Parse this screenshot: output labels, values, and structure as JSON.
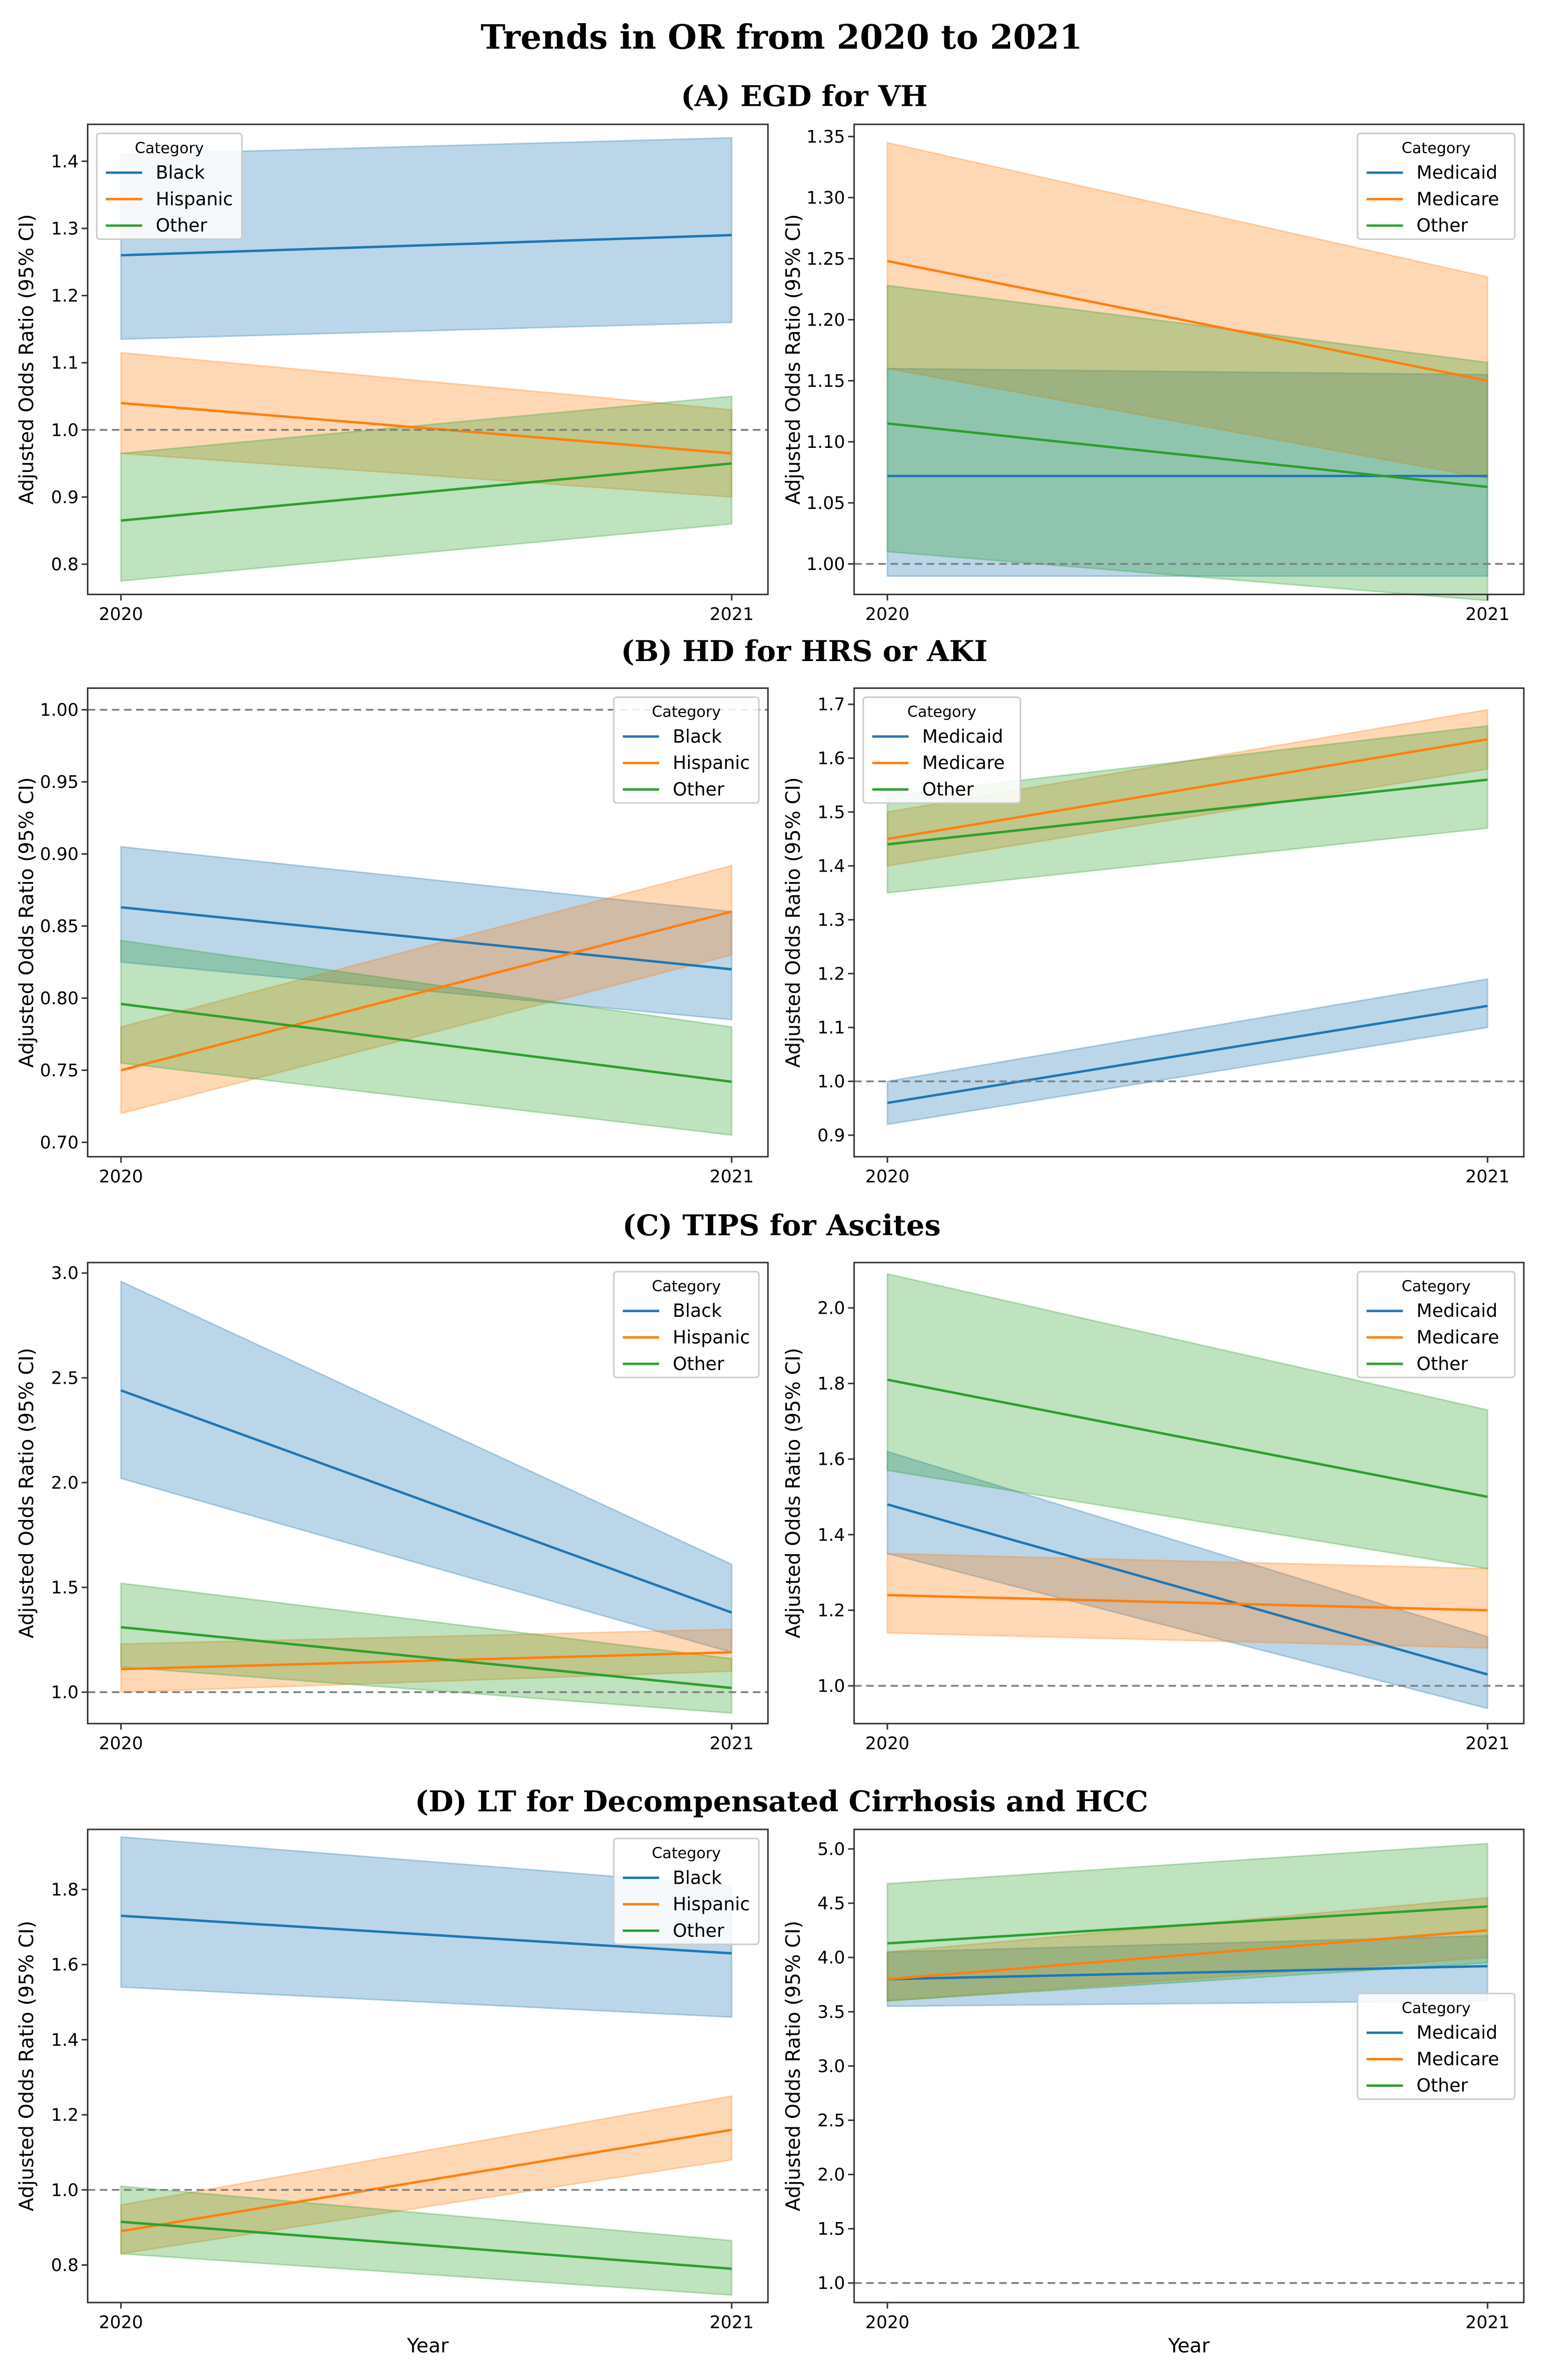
{
  "title": "Trends in OR from 2020 to 2021",
  "colors": {
    "Black": "#1f77b4",
    "Hispanic": "#ff7f0e",
    "Medicaid": "#1f77b4",
    "Medicare": "#ff7f0e",
    "Other": "#2ca02c",
    "reference_line": "#808080"
  },
  "sections": [
    {
      "label": "(A)  EGD for VH"
    },
    {
      "label": "(B)  HD for HRS or AKI"
    },
    {
      "label": "(C) TIPS for Ascites"
    },
    {
      "label": "(D) LT for Decompensated Cirrhosis and HCC"
    }
  ],
  "chart_data": [
    {
      "type": "line",
      "section": 0,
      "side": "left",
      "ylabel": "Adjusted Odds Ratio (95% CI)",
      "xlabel": "",
      "x": [
        "2020",
        "2021"
      ],
      "ylim": [
        0.755,
        1.455
      ],
      "yticks": [
        "0.8",
        "0.9",
        "1.0",
        "1.1",
        "1.2",
        "1.3",
        "1.4"
      ],
      "reference_line": 1.0,
      "legend_title": "Category",
      "legend_loc": "upper-left",
      "series": [
        {
          "name": "Black",
          "values": [
            1.26,
            1.29
          ],
          "ci_low": [
            1.135,
            1.16
          ],
          "ci_high": [
            1.41,
            1.435
          ]
        },
        {
          "name": "Hispanic",
          "values": [
            1.04,
            0.965
          ],
          "ci_low": [
            0.965,
            0.9
          ],
          "ci_high": [
            1.115,
            1.03
          ]
        },
        {
          "name": "Other",
          "values": [
            0.865,
            0.95
          ],
          "ci_low": [
            0.775,
            0.86
          ],
          "ci_high": [
            0.965,
            1.05
          ]
        }
      ]
    },
    {
      "type": "line",
      "section": 0,
      "side": "right",
      "ylabel": "Adjusted Odds Ratio (95% CI)",
      "xlabel": "",
      "x": [
        "2020",
        "2021"
      ],
      "ylim": [
        0.975,
        1.36
      ],
      "yticks": [
        "1.00",
        "1.05",
        "1.10",
        "1.15",
        "1.20",
        "1.25",
        "1.30",
        "1.35"
      ],
      "reference_line": 1.0,
      "legend_title": "Category",
      "legend_loc": "upper-right",
      "series": [
        {
          "name": "Medicaid",
          "values": [
            1.072,
            1.072
          ],
          "ci_low": [
            0.99,
            0.99
          ],
          "ci_high": [
            1.16,
            1.155
          ]
        },
        {
          "name": "Medicare",
          "values": [
            1.248,
            1.15
          ],
          "ci_low": [
            1.16,
            1.07
          ],
          "ci_high": [
            1.345,
            1.235
          ]
        },
        {
          "name": "Other",
          "values": [
            1.115,
            1.063
          ],
          "ci_low": [
            1.01,
            0.97
          ],
          "ci_high": [
            1.228,
            1.165
          ]
        }
      ]
    },
    {
      "type": "line",
      "section": 1,
      "side": "left",
      "ylabel": "Adjusted Odds Ratio (95% CI)",
      "xlabel": "",
      "x": [
        "2020",
        "2021"
      ],
      "ylim": [
        0.69,
        1.015
      ],
      "yticks": [
        "0.70",
        "0.75",
        "0.80",
        "0.85",
        "0.90",
        "0.95",
        "1.00"
      ],
      "reference_line": 1.0,
      "legend_title": "Category",
      "legend_loc": "upper-right",
      "series": [
        {
          "name": "Black",
          "values": [
            0.863,
            0.82
          ],
          "ci_low": [
            0.825,
            0.785
          ],
          "ci_high": [
            0.905,
            0.86
          ]
        },
        {
          "name": "Hispanic",
          "values": [
            0.75,
            0.86
          ],
          "ci_low": [
            0.72,
            0.83
          ],
          "ci_high": [
            0.78,
            0.892
          ]
        },
        {
          "name": "Other",
          "values": [
            0.796,
            0.742
          ],
          "ci_low": [
            0.755,
            0.705
          ],
          "ci_high": [
            0.84,
            0.78
          ]
        }
      ]
    },
    {
      "type": "line",
      "section": 1,
      "side": "right",
      "ylabel": "Adjusted Odds Ratio (95% CI)",
      "xlabel": "",
      "x": [
        "2020",
        "2021"
      ],
      "ylim": [
        0.86,
        1.73
      ],
      "yticks": [
        "0.9",
        "1.0",
        "1.1",
        "1.2",
        "1.3",
        "1.4",
        "1.5",
        "1.6",
        "1.7"
      ],
      "reference_line": 1.0,
      "legend_title": "Category",
      "legend_loc": "upper-left",
      "series": [
        {
          "name": "Medicaid",
          "values": [
            0.96,
            1.14
          ],
          "ci_low": [
            0.92,
            1.1
          ],
          "ci_high": [
            1.0,
            1.19
          ]
        },
        {
          "name": "Medicare",
          "values": [
            1.45,
            1.635
          ],
          "ci_low": [
            1.4,
            1.58
          ],
          "ci_high": [
            1.5,
            1.69
          ]
        },
        {
          "name": "Other",
          "values": [
            1.44,
            1.56
          ],
          "ci_low": [
            1.35,
            1.47
          ],
          "ci_high": [
            1.53,
            1.66
          ]
        }
      ]
    },
    {
      "type": "line",
      "section": 2,
      "side": "left",
      "ylabel": "Adjusted Odds Ratio (95% CI)",
      "xlabel": "",
      "x": [
        "2020",
        "2021"
      ],
      "ylim": [
        0.85,
        3.05
      ],
      "yticks": [
        "1.0",
        "1.5",
        "2.0",
        "2.5",
        "3.0"
      ],
      "reference_line": 1.0,
      "legend_title": "Category",
      "legend_loc": "upper-right",
      "series": [
        {
          "name": "Black",
          "values": [
            2.44,
            1.38
          ],
          "ci_low": [
            2.02,
            1.19
          ],
          "ci_high": [
            2.96,
            1.61
          ]
        },
        {
          "name": "Hispanic",
          "values": [
            1.11,
            1.19
          ],
          "ci_low": [
            1.0,
            1.1
          ],
          "ci_high": [
            1.23,
            1.3
          ]
        },
        {
          "name": "Other",
          "values": [
            1.31,
            1.02
          ],
          "ci_low": [
            1.12,
            0.9
          ],
          "ci_high": [
            1.52,
            1.16
          ]
        }
      ]
    },
    {
      "type": "line",
      "section": 2,
      "side": "right",
      "ylabel": "Adjusted Odds Ratio (95% CI)",
      "xlabel": "",
      "x": [
        "2020",
        "2021"
      ],
      "ylim": [
        0.9,
        2.12
      ],
      "yticks": [
        "1.0",
        "1.2",
        "1.4",
        "1.6",
        "1.8",
        "2.0"
      ],
      "reference_line": 1.0,
      "legend_title": "Category",
      "legend_loc": "upper-right",
      "series": [
        {
          "name": "Medicaid",
          "values": [
            1.48,
            1.03
          ],
          "ci_low": [
            1.35,
            0.94
          ],
          "ci_high": [
            1.62,
            1.13
          ]
        },
        {
          "name": "Medicare",
          "values": [
            1.24,
            1.2
          ],
          "ci_low": [
            1.14,
            1.1
          ],
          "ci_high": [
            1.35,
            1.31
          ]
        },
        {
          "name": "Other",
          "values": [
            1.81,
            1.5
          ],
          "ci_low": [
            1.57,
            1.31
          ],
          "ci_high": [
            2.09,
            1.73
          ]
        }
      ]
    },
    {
      "type": "line",
      "section": 3,
      "side": "left",
      "ylabel": "Adjusted Odds Ratio (95% CI)",
      "xlabel": "Year",
      "x": [
        "2020",
        "2021"
      ],
      "ylim": [
        0.7,
        1.96
      ],
      "yticks": [
        "0.8",
        "1.0",
        "1.2",
        "1.4",
        "1.6",
        "1.8"
      ],
      "reference_line": 1.0,
      "legend_title": "Category",
      "legend_loc": "upper-right",
      "series": [
        {
          "name": "Black",
          "values": [
            1.73,
            1.63
          ],
          "ci_low": [
            1.54,
            1.46
          ],
          "ci_high": [
            1.94,
            1.81
          ]
        },
        {
          "name": "Hispanic",
          "values": [
            0.89,
            1.16
          ],
          "ci_low": [
            0.83,
            1.08
          ],
          "ci_high": [
            0.96,
            1.25
          ]
        },
        {
          "name": "Other",
          "values": [
            0.915,
            0.79
          ],
          "ci_low": [
            0.83,
            0.72
          ],
          "ci_high": [
            1.01,
            0.865
          ]
        }
      ]
    },
    {
      "type": "line",
      "section": 3,
      "side": "right",
      "ylabel": "Adjusted Odds Ratio (95% CI)",
      "xlabel": "Year",
      "x": [
        "2020",
        "2021"
      ],
      "ylim": [
        0.82,
        5.18
      ],
      "yticks": [
        "1.0",
        "1.5",
        "2.0",
        "2.5",
        "3.0",
        "3.5",
        "4.0",
        "4.5",
        "5.0"
      ],
      "reference_line": 1.0,
      "legend_title": "Category",
      "legend_loc": "center-right",
      "series": [
        {
          "name": "Medicaid",
          "values": [
            3.8,
            3.92
          ],
          "ci_low": [
            3.55,
            3.6
          ],
          "ci_high": [
            4.05,
            4.2
          ]
        },
        {
          "name": "Medicare",
          "values": [
            3.8,
            4.25
          ],
          "ci_low": [
            3.6,
            4.0
          ],
          "ci_high": [
            4.05,
            4.55
          ]
        },
        {
          "name": "Other",
          "values": [
            4.13,
            4.47
          ],
          "ci_low": [
            3.6,
            3.95
          ],
          "ci_high": [
            4.68,
            5.05
          ]
        }
      ]
    }
  ]
}
